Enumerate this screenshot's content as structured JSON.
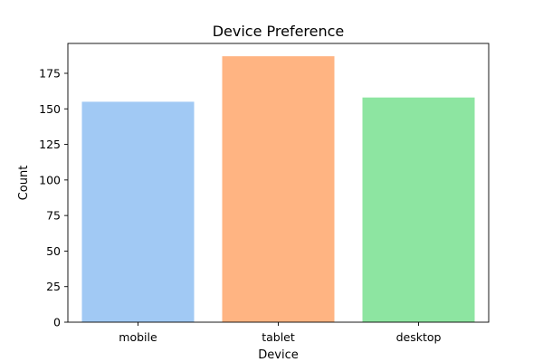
{
  "chart_data": {
    "type": "bar",
    "title": "Device Preference",
    "xlabel": "Device",
    "ylabel": "Count",
    "categories": [
      "mobile",
      "tablet",
      "desktop"
    ],
    "values": [
      155,
      187,
      158
    ],
    "colors": [
      "#a1c9f4",
      "#ffb482",
      "#8de5a1"
    ],
    "ylim": [
      0,
      196
    ],
    "yticks": [
      0,
      25,
      50,
      75,
      100,
      125,
      150,
      175
    ],
    "grid": false
  }
}
